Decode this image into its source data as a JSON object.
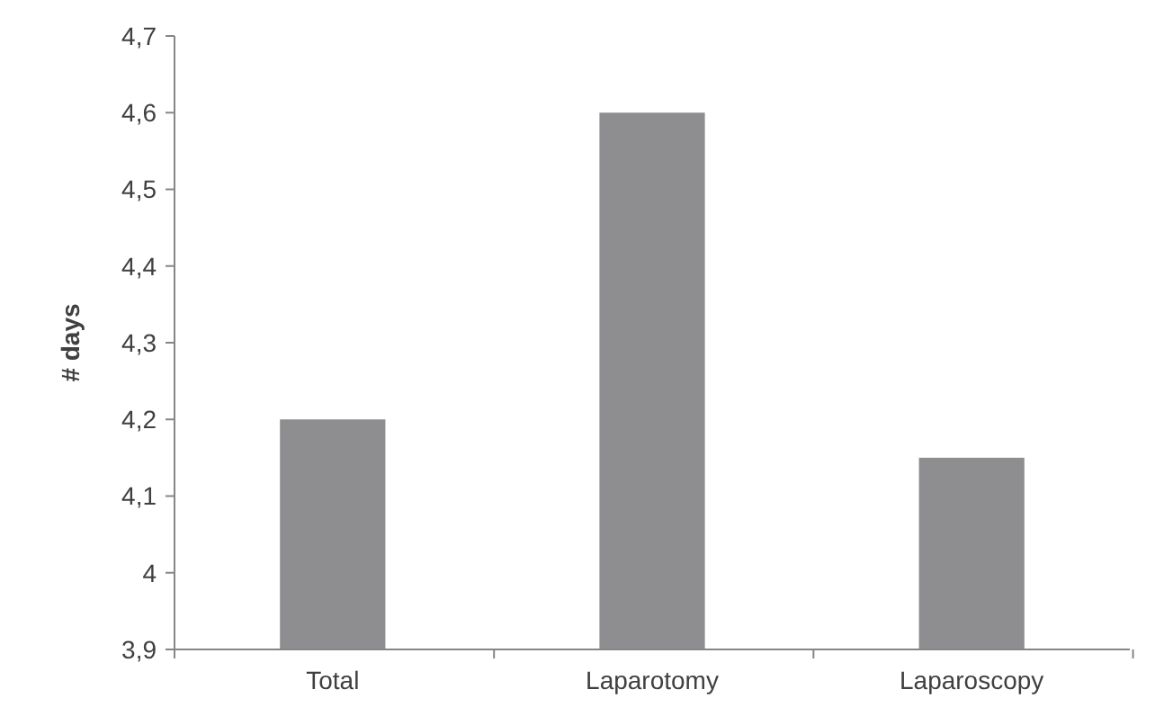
{
  "chart_data": {
    "type": "bar",
    "ylabel": "# days",
    "categories": [
      "Total",
      "Laparotomy",
      "Laparoscopy"
    ],
    "values": [
      4.2,
      4.6,
      4.15
    ],
    "color": "#8e8e90",
    "ylim": [
      3.9,
      4.7
    ],
    "yticks": [
      {
        "value": 3.9,
        "label": "3,9"
      },
      4,
      {
        "value": 4.1,
        "label": "4,1"
      },
      {
        "value": 4.2,
        "label": "4,2"
      },
      {
        "value": 4.3,
        "label": "4,3"
      },
      {
        "value": 4.4,
        "label": "4,4"
      },
      {
        "value": 4.5,
        "label": "4,5"
      },
      {
        "value": 4.6,
        "label": "4,6"
      },
      {
        "value": 4.7,
        "label": "4,7"
      }
    ],
    "grid": false
  }
}
